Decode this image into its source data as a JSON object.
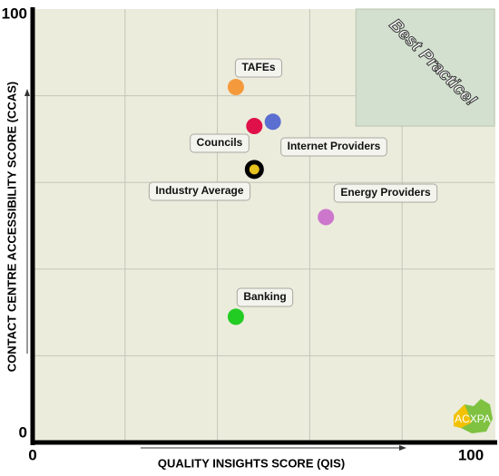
{
  "chart_data": {
    "type": "scatter",
    "x_label": "QUALITY INSIGHTS SCORE (QIS)",
    "y_label": "CONTACT CENTRE ACCESSIBILITY SCORE (CCAS)",
    "xlim": [
      0,
      100
    ],
    "ylim": [
      0,
      100
    ],
    "xticks": [
      0,
      100
    ],
    "yticks": [
      0,
      100
    ],
    "xgrid": [
      20,
      40,
      60,
      80
    ],
    "ygrid": [
      20,
      40,
      60,
      80
    ],
    "region": {
      "label": "Best Practice!",
      "xlim": [
        70,
        100
      ],
      "ylim": [
        73,
        100
      ],
      "color": "#d3e0cf"
    },
    "logo": "ACXPA",
    "series": [
      {
        "name": "TAFEs",
        "color": "#f59a3c",
        "x": [
          44
        ],
        "values": [
          82
        ]
      },
      {
        "name": "Councils",
        "color": "#e0104a",
        "x": [
          48
        ],
        "values": [
          73
        ]
      },
      {
        "name": "Internet Providers",
        "color": "#5b6fd0",
        "x": [
          52
        ],
        "values": [
          74
        ]
      },
      {
        "name": "Industry Average",
        "color": "#e6c21e",
        "x": [
          48
        ],
        "values": [
          63
        ]
      },
      {
        "name": "Energy Providers",
        "color": "#cc77cc",
        "x": [
          63.5
        ],
        "values": [
          52
        ]
      },
      {
        "name": "Banking",
        "color": "#22cc22",
        "x": [
          44
        ],
        "values": [
          29
        ]
      }
    ]
  }
}
